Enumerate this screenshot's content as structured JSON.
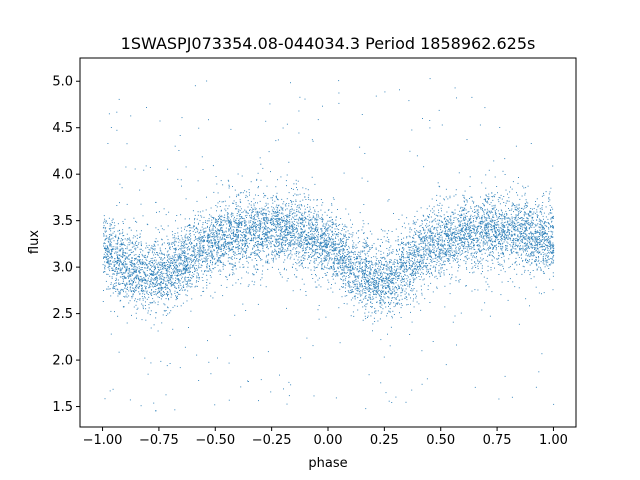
{
  "chart_data": {
    "type": "scatter",
    "title": "1SWASPJ073354.08-044034.3 Period 1858962.625s",
    "xlabel": "phase",
    "ylabel": "flux",
    "xlim": [
      -1.1,
      1.1
    ],
    "ylim": [
      1.28,
      5.25
    ],
    "xticks": [
      -1.0,
      -0.75,
      -0.5,
      -0.25,
      0.0,
      0.25,
      0.5,
      0.75,
      1.0
    ],
    "xtick_labels": [
      "−1.00",
      "−0.75",
      "−0.50",
      "−0.25",
      "0.00",
      "0.25",
      "0.50",
      "0.75",
      "1.00"
    ],
    "yticks": [
      1.5,
      2.0,
      2.5,
      3.0,
      3.5,
      4.0,
      4.5,
      5.0
    ],
    "ytick_labels": [
      "1.5",
      "2.0",
      "2.5",
      "3.0",
      "3.5",
      "4.0",
      "4.5",
      "5.0"
    ],
    "grid": false,
    "legend": "none",
    "marker_color": "#1f77b4",
    "phase_range": [
      -1.0,
      1.0
    ],
    "trend": {
      "x": [
        -1.0,
        -0.9,
        -0.8,
        -0.7,
        -0.6,
        -0.5,
        -0.4,
        -0.3,
        -0.2,
        -0.1,
        0.0,
        0.1,
        0.2,
        0.3,
        0.4,
        0.5,
        0.6,
        0.7,
        0.8,
        0.9,
        1.0
      ],
      "y": [
        3.2,
        3.0,
        2.9,
        2.95,
        3.15,
        3.3,
        3.35,
        3.4,
        3.4,
        3.35,
        3.25,
        3.0,
        2.85,
        2.9,
        3.15,
        3.3,
        3.35,
        3.4,
        3.4,
        3.35,
        3.3
      ]
    },
    "scatter_sd": 0.25,
    "n_points": 9000,
    "outlier_y_range": [
      1.45,
      5.05
    ]
  }
}
